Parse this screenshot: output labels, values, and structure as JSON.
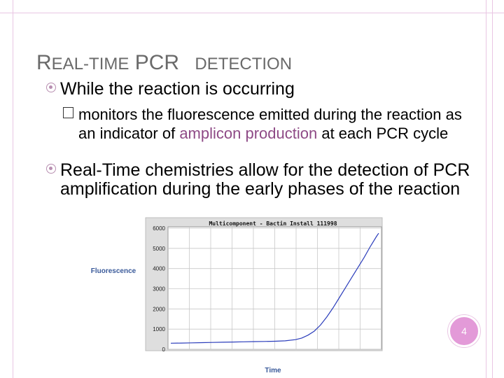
{
  "slide": {
    "title_part1": "R",
    "title_part2": "EAL",
    "title_part3": "-",
    "title_part4": "TIME",
    "title_part5": " PCR ",
    "title_part6": "DETECTION",
    "bullets": [
      {
        "text": "While the reaction is occurring"
      },
      {
        "text_before": "monitors the fluorescence emitted during the reaction as an indicator of ",
        "text_accent": "amplicon production",
        "text_after": " at each PCR cycle"
      },
      {
        "text": "Real-Time chemistries allow for the detection of PCR amplification during the early phases of the reaction"
      }
    ],
    "page_number": "4",
    "colors": {
      "accent": "#8e4a86",
      "frame": "#e9c6e3",
      "badge": "#e39ad8"
    }
  },
  "chart_data": {
    "type": "line",
    "title": "Multicomponent - Bactin Install 111998",
    "xlabel": "Time",
    "ylabel": "Fluorescence",
    "ylim": [
      0,
      6000
    ],
    "yticks": [
      "0",
      "1000",
      "2000",
      "3000",
      "4000",
      "5000",
      "6000"
    ],
    "grid": true,
    "series": [
      {
        "x": [
          0,
          5,
          10,
          15,
          20,
          25,
          30,
          35,
          40,
          45,
          50,
          55,
          60,
          63,
          66,
          69,
          72,
          75,
          78,
          81,
          84,
          87,
          90,
          93,
          96,
          99,
          100
        ],
        "values": [
          300,
          310,
          320,
          330,
          340,
          350,
          360,
          370,
          380,
          390,
          400,
          420,
          480,
          560,
          700,
          900,
          1200,
          1600,
          2050,
          2550,
          3050,
          3550,
          4050,
          4550,
          5100,
          5600,
          5750
        ]
      }
    ]
  }
}
